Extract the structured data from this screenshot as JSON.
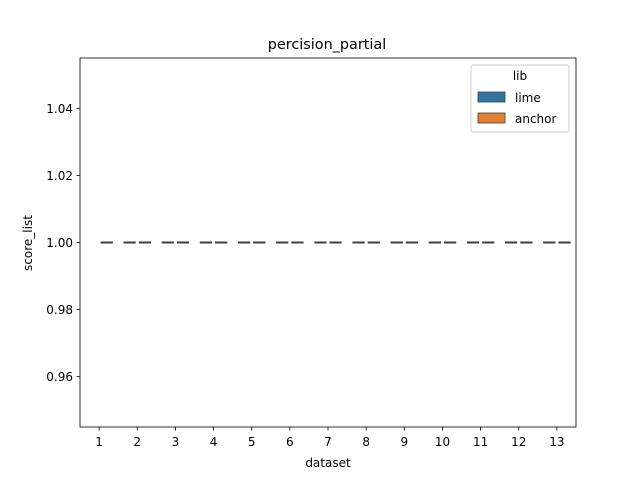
{
  "chart_data": {
    "type": "box",
    "title": "percision_partial",
    "xlabel": "dataset",
    "ylabel": "score_list",
    "categories": [
      "1",
      "2",
      "3",
      "4",
      "5",
      "6",
      "7",
      "8",
      "9",
      "10",
      "11",
      "12",
      "13"
    ],
    "ylim": [
      0.945,
      1.055
    ],
    "yticks": [
      0.96,
      0.98,
      1.0,
      1.02,
      1.04
    ],
    "ytick_labels": [
      "0.96",
      "0.98",
      "1.00",
      "1.02",
      "1.04"
    ],
    "grid": false,
    "legend": {
      "title": "lib",
      "position": "top-right"
    },
    "series": [
      {
        "name": "lime",
        "color": "#3274a1",
        "values": [
          null,
          1.0,
          1.0,
          1.0,
          1.0,
          1.0,
          1.0,
          1.0,
          1.0,
          1.0,
          1.0,
          1.0,
          1.0
        ]
      },
      {
        "name": "anchor",
        "color": "#e1812c",
        "values": [
          1.0,
          1.0,
          1.0,
          1.0,
          1.0,
          1.0,
          1.0,
          1.0,
          1.0,
          1.0,
          1.0,
          1.0,
          1.0
        ]
      }
    ],
    "box_line_color": "#3f3f3f"
  }
}
